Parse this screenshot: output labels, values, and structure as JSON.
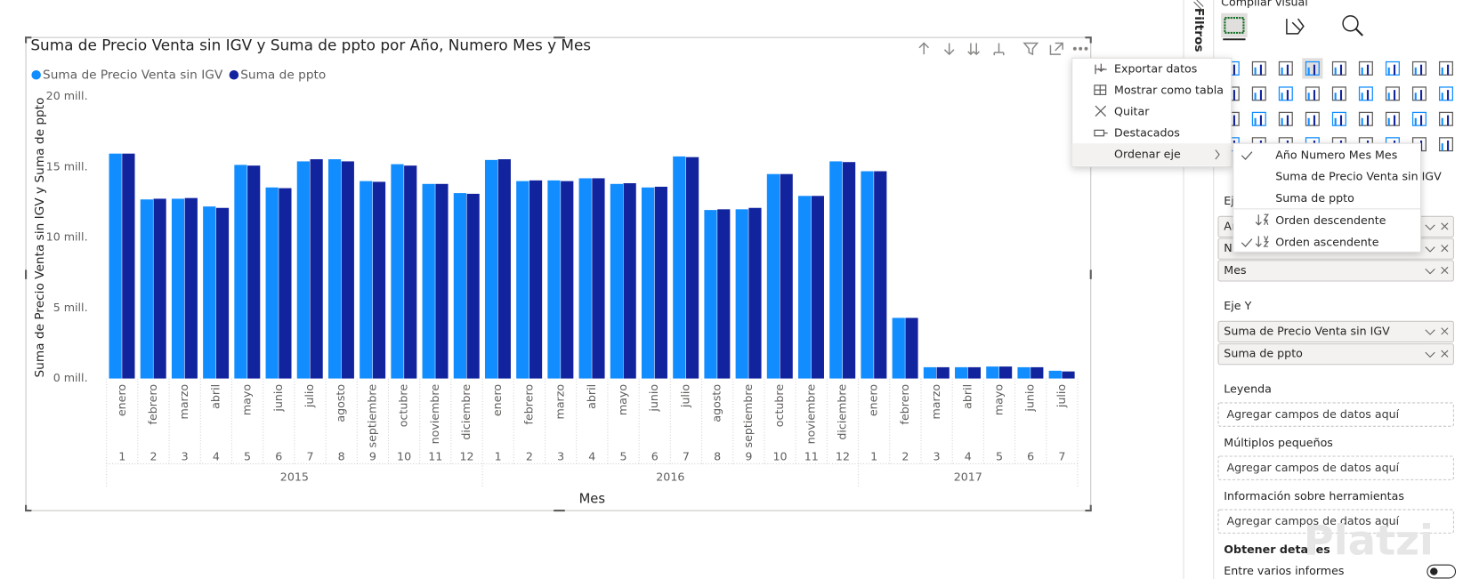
{
  "chart_data": {
    "type": "bar",
    "title": "Suma de Precio Venta sin IGV y Suma de ppto por Año, Numero Mes y Mes",
    "xlabel": "Mes",
    "ylabel": "Suma de Precio Venta sin IGV y Suma de ppto",
    "categories": [
      "enero",
      "febrero",
      "marzo",
      "abril",
      "mayo",
      "junio",
      "julio",
      "agosto",
      "septiembre",
      "octubre",
      "noviembre",
      "diciembre",
      "enero",
      "febrero",
      "marzo",
      "abril",
      "mayo",
      "junio",
      "julio",
      "agosto",
      "septiembre",
      "octubre",
      "noviembre",
      "diciembre",
      "enero",
      "febrero",
      "marzo",
      "abril",
      "mayo",
      "junio",
      "julio"
    ],
    "month_numbers": [
      "1",
      "2",
      "3",
      "4",
      "5",
      "6",
      "7",
      "8",
      "9",
      "10",
      "11",
      "12",
      "1",
      "2",
      "3",
      "4",
      "5",
      "6",
      "7",
      "8",
      "9",
      "10",
      "11",
      "12",
      "1",
      "2",
      "3",
      "4",
      "5",
      "6",
      "7"
    ],
    "years": [
      "2015",
      "2016",
      "2017"
    ],
    "series": [
      {
        "name": "Suma de Precio Venta sin IGV",
        "color": "#118dff",
        "values": [
          15.95,
          12.7,
          12.75,
          12.2,
          15.15,
          13.55,
          15.4,
          15.55,
          14.0,
          15.2,
          13.8,
          13.15,
          15.5,
          14.0,
          14.05,
          14.2,
          13.8,
          13.55,
          15.75,
          11.95,
          12.0,
          14.5,
          12.95,
          15.4,
          14.7,
          4.3,
          0.8,
          0.8,
          0.85,
          0.8,
          0.55
        ]
      },
      {
        "name": "Suma de ppto",
        "color": "#12239e",
        "values": [
          15.95,
          12.75,
          12.8,
          12.1,
          15.1,
          13.5,
          15.55,
          15.4,
          13.95,
          15.1,
          13.8,
          13.1,
          15.55,
          14.05,
          14.0,
          14.2,
          13.85,
          13.6,
          15.7,
          12.0,
          12.1,
          14.5,
          12.95,
          15.35,
          14.7,
          4.3,
          0.8,
          0.8,
          0.85,
          0.8,
          0.5
        ]
      }
    ],
    "ylim": [
      0,
      20
    ],
    "yticks": [
      {
        "value": 0,
        "label": "0 mill."
      },
      {
        "value": 5,
        "label": "5 mill."
      },
      {
        "value": 10,
        "label": "10 mill."
      },
      {
        "value": 15,
        "label": "15 mill."
      },
      {
        "value": 20,
        "label": "20 mill."
      }
    ],
    "grid": false
  },
  "context_menu": {
    "items": [
      "Exportar datos",
      "Mostrar como tabla",
      "Quitar",
      "Destacados",
      "Ordenar eje"
    ]
  },
  "submenu": {
    "items": [
      {
        "label": "Año Numero Mes Mes",
        "checked": true
      },
      {
        "label": "Suma de Precio Venta sin IGV",
        "checked": false
      },
      {
        "label": "Suma de ppto",
        "checked": false
      },
      {
        "label": "Orden descendente",
        "checked": false
      },
      {
        "label": "Orden ascendente",
        "checked": true
      }
    ]
  },
  "pane": {
    "title": "Compilar visual",
    "filters_tab": "Filtros",
    "axis_x": {
      "label": "Eje X",
      "fields": [
        "Año",
        "Numero Mes",
        "Mes"
      ]
    },
    "axis_y": {
      "label": "Eje Y",
      "fields": [
        "Suma de Precio Venta sin IGV",
        "Suma de ppto"
      ]
    },
    "wells": [
      {
        "label": "Leyenda",
        "placeholder": "Agregar campos de datos aquí"
      },
      {
        "label": "Múltiplos pequeños",
        "placeholder": "Agregar campos de datos aquí"
      },
      {
        "label": "Información sobre herramientas",
        "placeholder": "Agregar campos de datos aquí"
      }
    ],
    "details_title": "Obtener detalles",
    "cross_report": "Entre varios informes"
  },
  "watermark": "Platzi"
}
